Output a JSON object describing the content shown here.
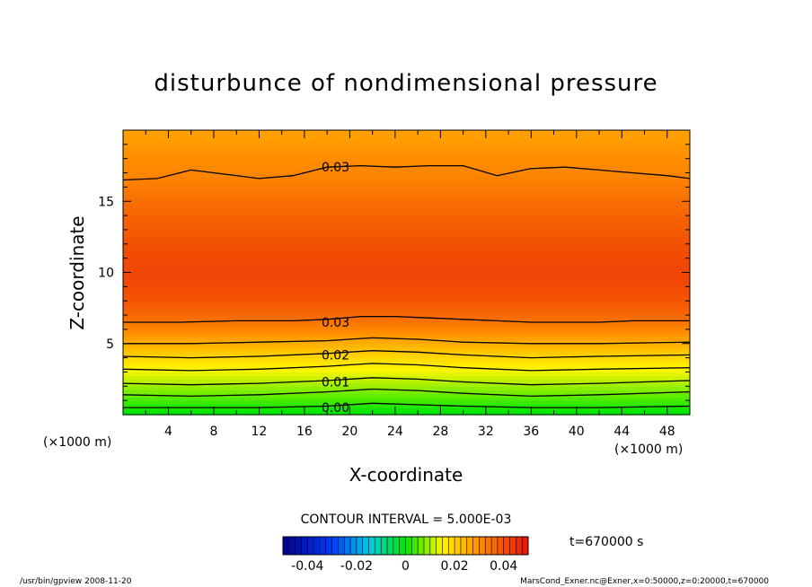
{
  "chart_data": {
    "type": "heatmap",
    "title": "disturbunce of nondimensional pressure",
    "xlabel": "X-coordinate",
    "ylabel": "Z-coordinate",
    "x_unit": "(×1000 m)",
    "y_unit": "(×1000 m)",
    "xlim": [
      0,
      50
    ],
    "ylim": [
      0,
      20
    ],
    "x_ticks": [
      4,
      8,
      12,
      16,
      20,
      24,
      28,
      32,
      36,
      40,
      44,
      48
    ],
    "y_ticks": [
      5,
      10,
      15
    ],
    "colorbar_ticks": [
      "-0.04",
      "-0.02",
      "0",
      "0.02",
      "0.04"
    ],
    "colorbar_range": [
      -0.05,
      0.05
    ],
    "contour_interval_text": "CONTOUR INTERVAL = 5.000E-03",
    "time_text": "t=670000 s",
    "contour_labels": [
      {
        "value": "0.03",
        "x": 17,
        "z": 17.4
      },
      {
        "value": "0.03",
        "x": 17,
        "z": 6.5
      },
      {
        "value": "0.02",
        "x": 17,
        "z": 4.2
      },
      {
        "value": "0.01",
        "x": 17,
        "z": 2.3
      },
      {
        "value": "0.00",
        "x": 17,
        "z": 0.5
      }
    ],
    "profile": {
      "z": [
        0,
        1,
        2,
        3,
        4,
        5,
        6,
        7,
        8,
        9,
        10,
        11,
        12,
        13,
        14,
        15,
        16,
        17,
        18,
        19,
        20
      ],
      "value": [
        -0.001,
        0.004,
        0.009,
        0.014,
        0.019,
        0.025,
        0.031,
        0.036,
        0.039,
        0.041,
        0.042,
        0.041,
        0.04,
        0.038,
        0.037,
        0.035,
        0.033,
        0.031,
        0.03,
        0.028,
        0.027
      ]
    },
    "contour_lines": [
      {
        "level": "0.03",
        "x": [
          0,
          3,
          6,
          9,
          12,
          15,
          18,
          21,
          24,
          27,
          30,
          33,
          36,
          39,
          42,
          45,
          48,
          50
        ],
        "z": [
          16.5,
          16.6,
          17.2,
          16.9,
          16.6,
          16.8,
          17.4,
          17.5,
          17.4,
          17.5,
          17.5,
          16.8,
          17.3,
          17.4,
          17.2,
          17.0,
          16.8,
          16.6
        ]
      },
      {
        "level": "0.03",
        "x": [
          0,
          5,
          10,
          15,
          18,
          21,
          24,
          27,
          30,
          33,
          36,
          39,
          42,
          45,
          48,
          50
        ],
        "z": [
          6.5,
          6.5,
          6.6,
          6.6,
          6.7,
          6.9,
          6.9,
          6.8,
          6.7,
          6.6,
          6.5,
          6.5,
          6.5,
          6.6,
          6.6,
          6.6
        ]
      },
      {
        "level": "",
        "x": [
          0,
          6,
          12,
          18,
          22,
          26,
          30,
          36,
          42,
          50
        ],
        "z": [
          5.0,
          5.0,
          5.1,
          5.2,
          5.4,
          5.3,
          5.1,
          5.0,
          5.0,
          5.1
        ]
      },
      {
        "level": "0.02",
        "x": [
          0,
          6,
          12,
          18,
          22,
          26,
          30,
          36,
          42,
          50
        ],
        "z": [
          4.1,
          4.0,
          4.1,
          4.3,
          4.5,
          4.4,
          4.2,
          4.0,
          4.1,
          4.2
        ]
      },
      {
        "level": "",
        "x": [
          0,
          6,
          12,
          18,
          22,
          26,
          30,
          36,
          42,
          50
        ],
        "z": [
          3.2,
          3.1,
          3.2,
          3.4,
          3.6,
          3.5,
          3.3,
          3.1,
          3.2,
          3.3
        ]
      },
      {
        "level": "0.01",
        "x": [
          0,
          6,
          12,
          18,
          22,
          26,
          30,
          36,
          42,
          50
        ],
        "z": [
          2.2,
          2.1,
          2.2,
          2.4,
          2.6,
          2.5,
          2.3,
          2.1,
          2.2,
          2.4
        ]
      },
      {
        "level": "",
        "x": [
          0,
          6,
          12,
          18,
          22,
          26,
          30,
          36,
          42,
          50
        ],
        "z": [
          1.4,
          1.3,
          1.4,
          1.6,
          1.8,
          1.7,
          1.5,
          1.3,
          1.4,
          1.6
        ]
      },
      {
        "level": "0.00",
        "x": [
          0,
          6,
          12,
          18,
          22,
          26,
          30,
          36,
          42,
          50
        ],
        "z": [
          0.5,
          0.5,
          0.5,
          0.6,
          0.8,
          0.7,
          0.6,
          0.5,
          0.5,
          0.6
        ]
      }
    ]
  },
  "footer": {
    "left": "/usr/bin/gpview   2008-11-20",
    "right": "MarsCond_Exner.nc@Exner,x=0:50000,z=0:20000,t=670000"
  }
}
